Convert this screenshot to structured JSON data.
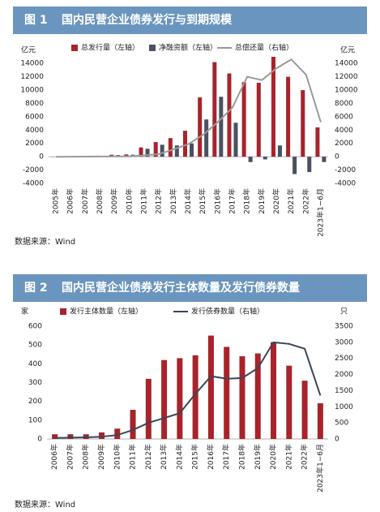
{
  "chart_data": [
    {
      "type": "bar",
      "figure_label": "图 1",
      "title": "国内民营企业债券发行与到期规模",
      "y_unit": "亿元",
      "y2_unit": "亿元",
      "categories": [
        "2005年",
        "2006年",
        "2007年",
        "2008年",
        "2009年",
        "2010年",
        "2011年",
        "2012年",
        "2013年",
        "2014年",
        "2015年",
        "2016年",
        "2017年",
        "2018年",
        "2019年",
        "2020年",
        "2021年",
        "2022年",
        "2023年1−6月"
      ],
      "series": [
        {
          "name": "总发行量（左轴）",
          "type": "bar",
          "color": "#a8232b",
          "values": [
            20,
            50,
            100,
            150,
            300,
            350,
            1400,
            2200,
            2800,
            3900,
            8900,
            14200,
            12500,
            11200,
            11100,
            15000,
            12000,
            10000,
            4400
          ]
        },
        {
          "name": "净融资额（左轴）",
          "type": "bar",
          "color": "#4a5160",
          "values": [
            20,
            40,
            80,
            120,
            250,
            300,
            1200,
            1800,
            1700,
            2000,
            5600,
            9000,
            5100,
            -800,
            -400,
            1700,
            -2600,
            -2300,
            -800
          ]
        },
        {
          "name": "总偿还量（右轴）",
          "type": "line",
          "axis": "y2",
          "color": "#9a9a9a",
          "values": [
            0,
            10,
            20,
            30,
            50,
            50,
            200,
            400,
            1100,
            1900,
            3300,
            5200,
            7400,
            12000,
            11500,
            13300,
            14600,
            12300,
            5200
          ]
        }
      ],
      "ylim": [
        -4000,
        15000
      ],
      "yticks": [
        -4000,
        -2000,
        0,
        2000,
        4000,
        6000,
        8000,
        10000,
        12000,
        14000
      ],
      "y2lim": [
        -4000,
        15000
      ],
      "y2ticks": [
        -4000,
        -2000,
        0,
        2000,
        4000,
        6000,
        8000,
        10000,
        12000,
        14000
      ],
      "source": "数据来源：Wind"
    },
    {
      "type": "bar",
      "figure_label": "图 2",
      "title": "国内民营企业债券发行主体数量及发行债券数量",
      "y_unit": "家",
      "y2_unit": "只",
      "categories": [
        "2006年",
        "2007年",
        "2008年",
        "2009年",
        "2010年",
        "2011年",
        "2012年",
        "2013年",
        "2014年",
        "2015年",
        "2016年",
        "2017年",
        "2018年",
        "2019年",
        "2020年",
        "2021年",
        "2022年",
        "2023年1−6月"
      ],
      "series": [
        {
          "name": "发行主体数量（左轴）",
          "type": "bar",
          "color": "#a8232b",
          "values": [
            25,
            25,
            25,
            35,
            55,
            155,
            320,
            420,
            430,
            445,
            550,
            490,
            440,
            455,
            515,
            390,
            310,
            190
          ]
        },
        {
          "name": "发行债券数量（右轴）",
          "type": "line",
          "axis": "y2",
          "color": "#3a4656",
          "values": [
            30,
            40,
            50,
            70,
            120,
            280,
            500,
            650,
            800,
            1400,
            1950,
            1870,
            1890,
            2200,
            3000,
            2950,
            2800,
            1350
          ]
        }
      ],
      "ylim": [
        0,
        600
      ],
      "yticks": [
        0,
        100,
        200,
        300,
        400,
        500,
        600
      ],
      "y2lim": [
        0,
        3500
      ],
      "y2ticks": [
        0,
        500,
        1000,
        1500,
        2000,
        2500,
        3000,
        3500
      ],
      "source": "数据来源：Wind"
    }
  ]
}
